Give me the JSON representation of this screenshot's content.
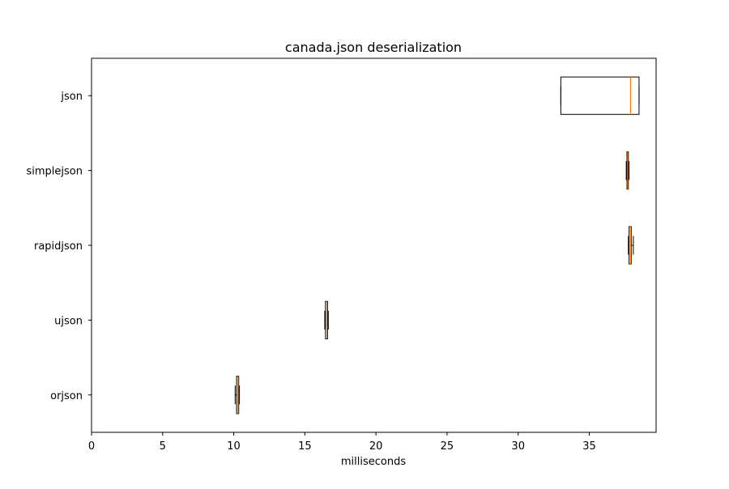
{
  "chart_data": {
    "type": "boxplot",
    "orientation": "horizontal",
    "title": "canada.json deserialization",
    "xlabel": "milliseconds",
    "ylabel": "",
    "xlim": [
      0,
      40
    ],
    "x_ticks": [
      0,
      5,
      10,
      15,
      20,
      25,
      30,
      35
    ],
    "categories": [
      "orjson",
      "ujson",
      "rapidjson",
      "simplejson",
      "json"
    ],
    "boxes": [
      {
        "whislo": 10.1,
        "q1": 10.2,
        "med": 10.3,
        "q3": 10.35,
        "whishi": 10.4
      },
      {
        "whislo": 16.4,
        "q1": 16.45,
        "med": 16.55,
        "q3": 16.6,
        "whishi": 16.65
      },
      {
        "whislo": 37.75,
        "q1": 37.8,
        "med": 37.9,
        "q3": 37.95,
        "whishi": 38.1
      },
      {
        "whislo": 37.6,
        "q1": 37.65,
        "med": 37.7,
        "q3": 37.75,
        "whishi": 37.8
      },
      {
        "whislo": 33.0,
        "q1": 33.0,
        "med": 37.9,
        "q3": 38.5,
        "whishi": 38.5
      }
    ],
    "grid": false,
    "colors": {
      "box": "#000000",
      "median": "#ff7f0e",
      "axes": "#000000",
      "background": "#ffffff"
    }
  }
}
